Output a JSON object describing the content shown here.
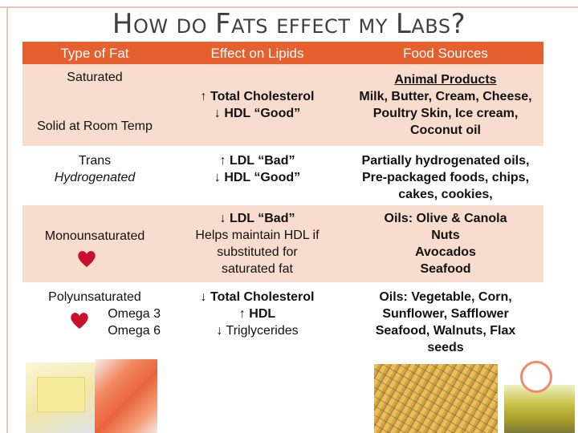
{
  "title": {
    "w1_big": "H",
    "w1_small": "OW",
    "w2": "DO",
    "w3_big": "F",
    "w3_small": "ATS",
    "w4": "EFFECT",
    "w5": "MY",
    "w6_big": "L",
    "w6_small": "ABS",
    "mark": "?"
  },
  "headers": {
    "type": "Type of Fat",
    "effect": "Effect on Lipids",
    "sources": "Food Sources"
  },
  "rows": {
    "saturated": {
      "name": "Saturated",
      "note": "Solid at Room Temp",
      "effect_1": "↑ Total Cholesterol",
      "effect_2": "↓ HDL “Good”",
      "sources_heading": "Animal Products",
      "sources_1": "Milk, Butter, Cream, Cheese,",
      "sources_2": "Poultry Skin, Ice cream,",
      "sources_3": "Coconut oil"
    },
    "trans": {
      "name": "Trans",
      "note": "Hydrogenated",
      "effect_1": "↑ LDL “Bad”",
      "effect_2": "↓ HDL “Good”",
      "sources_1": "Partially hydrogenated oils,",
      "sources_2": "Pre-packaged foods, chips,",
      "sources_3": "cakes, cookies,"
    },
    "mono": {
      "name": "Monounsaturated",
      "effect_1": "↓ LDL “Bad”",
      "effect_2": "Helps maintain HDL if",
      "effect_3": "substituted for",
      "effect_4": "saturated fat",
      "sources_1": "Oils: Olive & Canola",
      "sources_2": "Nuts",
      "sources_3": "Avocados",
      "sources_4": "Seafood"
    },
    "poly": {
      "name": "Polyunsaturated",
      "sub_1": "Omega 3",
      "sub_2": "Omega 6",
      "effect_1": "↓ Total Cholesterol",
      "effect_2": "↑ HDL",
      "effect_3": "↓ Triglycerides",
      "sources_1": "Oils: Vegetable, Corn,",
      "sources_2": "Sunflower, Safflower",
      "sources_3": "Seafood, Walnuts, Flax",
      "sources_4": "seeds"
    }
  },
  "icons": {
    "heart": "heart-icon",
    "heart_color": "#c8102e"
  },
  "colors": {
    "header_bg": "#e6602f",
    "band_bg": "#f8dccd",
    "title_color": "#3f3f3f"
  }
}
